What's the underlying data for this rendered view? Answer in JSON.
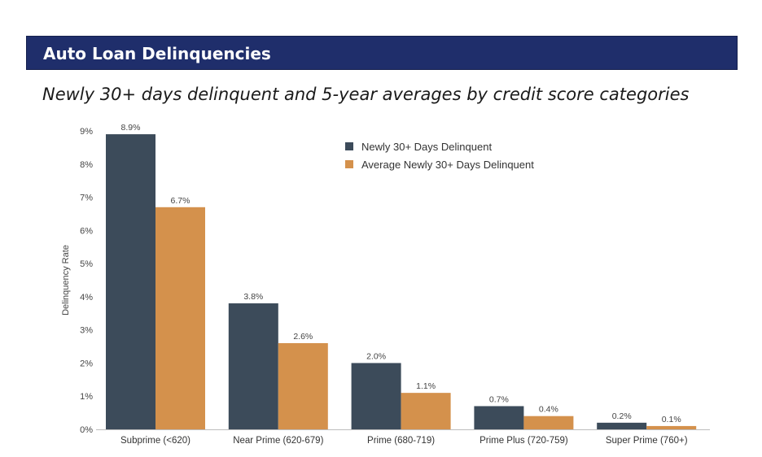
{
  "header": {
    "title": "Auto Loan Delinquencies"
  },
  "subtitle": "Newly 30+ days delinquent and 5-year averages by credit score categories",
  "chart_data": {
    "type": "bar",
    "ylabel": "Delinquency Rate",
    "xlabel": "",
    "ylim": [
      0,
      9
    ],
    "yticks": [
      "0%",
      "1%",
      "2%",
      "3%",
      "4%",
      "5%",
      "6%",
      "7%",
      "8%",
      "9%"
    ],
    "grid": false,
    "legend_position": "top-right",
    "categories": [
      "Subprime (<620)",
      "Near Prime (620-679)",
      "Prime (680-719)",
      "Prime Plus (720-759)",
      "Super Prime (760+)"
    ],
    "series": [
      {
        "name": "Newly 30+ Days Delinquent",
        "color": "#3c4b5a",
        "values": [
          8.9,
          3.8,
          2.0,
          0.7,
          0.2
        ],
        "labels": [
          "8.9%",
          "3.8%",
          "2.0%",
          "0.7%",
          "0.2%"
        ]
      },
      {
        "name": "Average Newly 30+ Days Delinquent",
        "color": "#d4914c",
        "values": [
          6.7,
          2.6,
          1.1,
          0.4,
          0.1
        ],
        "labels": [
          "6.7%",
          "2.6%",
          "1.1%",
          "0.4%",
          "0.1%"
        ]
      }
    ]
  }
}
